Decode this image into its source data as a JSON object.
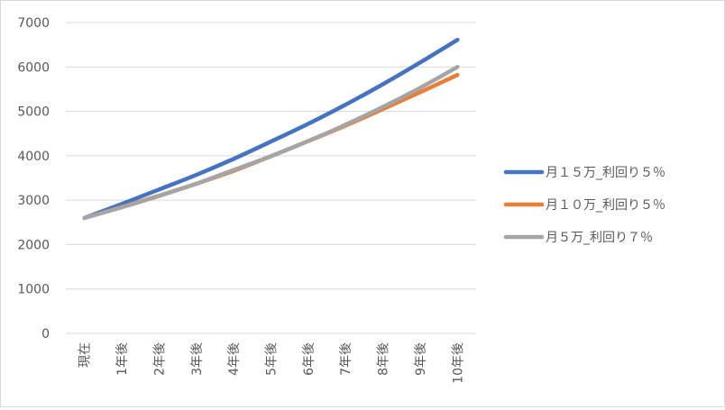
{
  "chart_data": {
    "type": "line",
    "categories": [
      "現在",
      "1年後",
      "2年後",
      "3年後",
      "4年後",
      "5年後",
      "6年後",
      "7年後",
      "8年後",
      "9年後",
      "10年後"
    ],
    "ylim": [
      0,
      7000
    ],
    "yticks": [
      0,
      1000,
      2000,
      3000,
      4000,
      5000,
      6000,
      7000
    ],
    "grid": true,
    "legend_position": "right",
    "series": [
      {
        "name": "月１５万_利回り５％",
        "color": "#4472C4",
        "values": [
          2600,
          2915,
          3240,
          3570,
          3930,
          4320,
          4720,
          5150,
          5610,
          6100,
          6610
        ]
      },
      {
        "name": "月１０万_利回り５％",
        "color": "#ED7D31",
        "values": [
          2600,
          2845,
          3100,
          3370,
          3660,
          3990,
          4330,
          4680,
          5050,
          5430,
          5820
        ]
      },
      {
        "name": "月５万_利回り７％",
        "color": "#A5A5A5",
        "values": [
          2600,
          2840,
          3095,
          3370,
          3680,
          3990,
          4330,
          4700,
          5100,
          5530,
          6000
        ]
      }
    ]
  }
}
